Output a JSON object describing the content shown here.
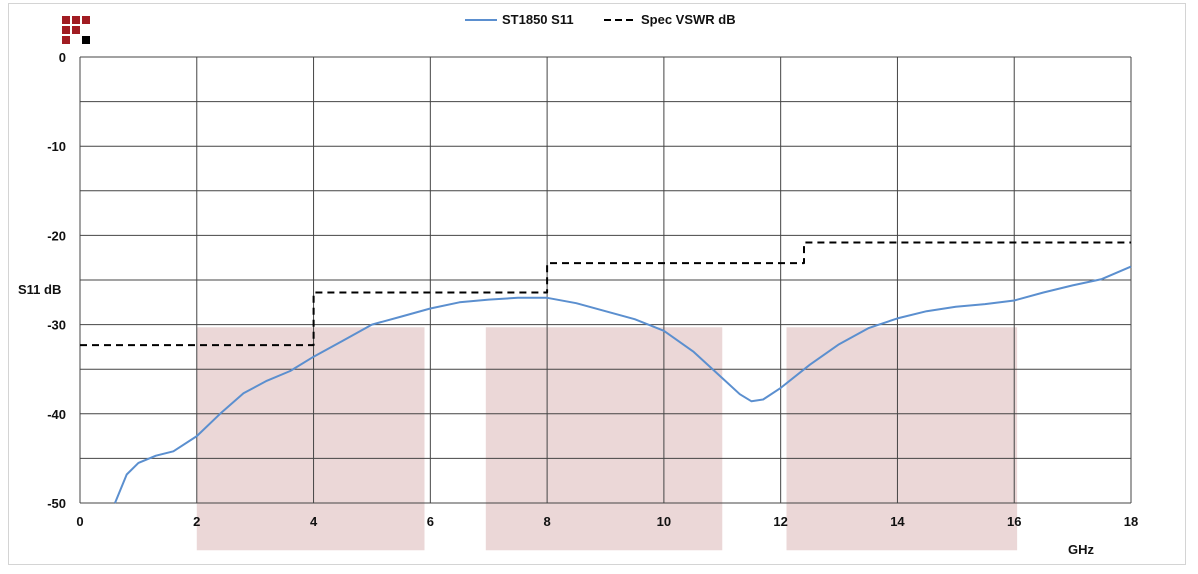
{
  "chart_data": {
    "type": "line",
    "xlabel": "GHz",
    "ylabel": "S11 dB",
    "xlim": [
      0,
      18
    ],
    "ylim": [
      -50,
      0
    ],
    "x_ticks": [
      "0",
      "2",
      "4",
      "6",
      "8",
      "10",
      "12",
      "14",
      "16",
      "18"
    ],
    "y_ticks": [
      "0",
      "-10",
      "-20",
      "-30",
      "-40",
      "-50"
    ],
    "grid": true,
    "legend_position": "top-center",
    "shaded_bands": [
      {
        "x_from": 2.0,
        "x_to": 5.9,
        "y_from": -30.3,
        "y_to": -55.3
      },
      {
        "x_from": 6.95,
        "x_to": 11.0,
        "y_from": -30.3,
        "y_to": -55.3
      },
      {
        "x_from": 12.1,
        "x_to": 16.05,
        "y_from": -30.3,
        "y_to": -55.3
      }
    ],
    "series": [
      {
        "name": "ST1850 S11",
        "color": "#5b8fcf",
        "style": "solid",
        "x": [
          0.6,
          0.8,
          1.0,
          1.3,
          1.6,
          2.0,
          2.4,
          2.8,
          3.2,
          3.6,
          4.0,
          4.5,
          5.0,
          5.5,
          6.0,
          6.5,
          7.0,
          7.5,
          8.0,
          8.5,
          9.0,
          9.5,
          10.0,
          10.5,
          11.0,
          11.3,
          11.5,
          11.7,
          12.0,
          12.5,
          13.0,
          13.5,
          14.0,
          14.5,
          15.0,
          15.5,
          16.0,
          16.5,
          17.0,
          17.5,
          18.0
        ],
        "y": [
          -50.0,
          -46.8,
          -45.5,
          -44.7,
          -44.2,
          -42.5,
          -40.0,
          -37.7,
          -36.3,
          -35.2,
          -33.6,
          -31.8,
          -30.0,
          -29.1,
          -28.2,
          -27.5,
          -27.2,
          -27.0,
          -27.0,
          -27.6,
          -28.5,
          -29.4,
          -30.7,
          -33.0,
          -36.0,
          -37.8,
          -38.6,
          -38.4,
          -37.1,
          -34.5,
          -32.2,
          -30.4,
          -29.3,
          -28.5,
          -28.0,
          -27.7,
          -27.3,
          -26.4,
          -25.6,
          -24.9,
          -23.5
        ]
      },
      {
        "name": "Spec VSWR dB",
        "color": "#000000",
        "style": "dashed",
        "x": [
          0.0,
          4.0,
          4.0,
          8.0,
          8.0,
          12.4,
          12.4,
          18.0
        ],
        "y": [
          -32.3,
          -32.3,
          -26.4,
          -26.4,
          -23.1,
          -23.1,
          -20.8,
          -20.8
        ]
      }
    ]
  },
  "logo": {
    "colors": {
      "primary": "#a11c22",
      "accent": "#000000"
    }
  }
}
